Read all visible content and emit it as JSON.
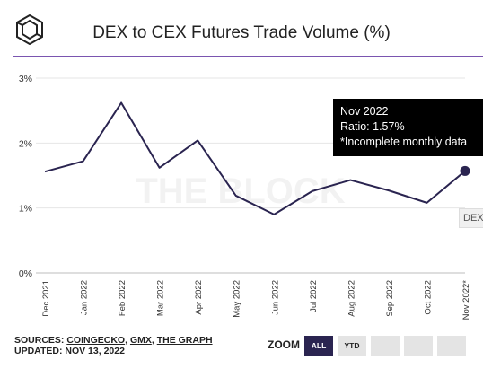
{
  "header": {
    "title": "DEX to CEX Futures Trade Volume (%)",
    "watermark": "THE BLOCK"
  },
  "tooltip": {
    "line1": "Nov 2022",
    "line2": "Ratio: 1.57%",
    "line3": "*Incomplete monthly data"
  },
  "series_tag": "DEX",
  "footer": {
    "sources_prefix": "SOURCES: ",
    "sources": [
      "COINGECKO",
      "GMX",
      "THE GRAPH"
    ],
    "updated": "UPDATED: NOV 13, 2022"
  },
  "zoom": {
    "label": "ZOOM",
    "buttons": [
      "ALL",
      "YTD",
      "",
      "",
      "",
      ""
    ],
    "active": "ALL"
  },
  "colors": {
    "line": "#2a2450",
    "accent_rule": "#7a55b0",
    "active_button": "#2a2450"
  },
  "chart_data": {
    "type": "line",
    "categories": [
      "Dec 2021",
      "Jan 2022",
      "Feb 2022",
      "Mar 2022",
      "Apr 2022",
      "May 2022",
      "Jun 2022",
      "Jul 2022",
      "Aug 2022",
      "Sep 2022",
      "Oct 2022",
      "Nov 2022*"
    ],
    "values": [
      1.56,
      1.72,
      2.62,
      1.62,
      2.04,
      1.19,
      0.9,
      1.26,
      1.43,
      1.27,
      1.08,
      1.57
    ],
    "yticks": [
      "0%",
      "1%",
      "2%",
      "3%"
    ],
    "ylim": [
      0,
      3
    ],
    "grid": "y",
    "highlight_index": 11
  }
}
